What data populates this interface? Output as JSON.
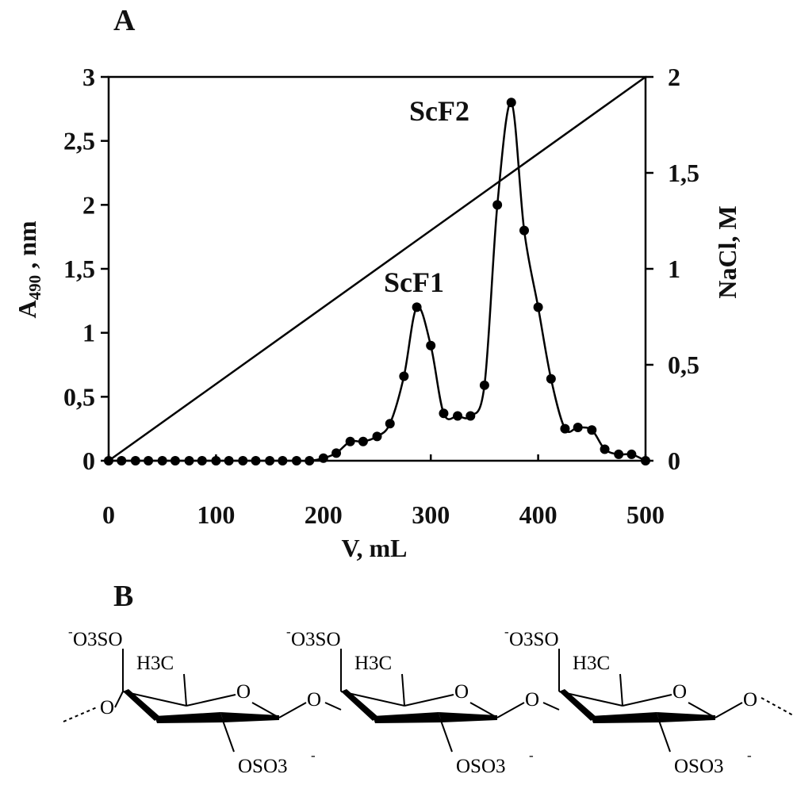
{
  "panels": {
    "a_label": "A",
    "b_label": "B"
  },
  "chart_data": {
    "type": "line",
    "x_axis": {
      "label": "V, mL",
      "range": [
        0,
        500
      ],
      "ticks": [
        0,
        100,
        200,
        300,
        400,
        500
      ],
      "tick_labels": [
        "0",
        "100",
        "200",
        "300",
        "400",
        "500"
      ]
    },
    "y_axis_left": {
      "label_main": "A",
      "label_sub": "490",
      "label_rest": " , nm",
      "range": [
        0,
        3
      ],
      "ticks": [
        0,
        0.5,
        1,
        1.5,
        2,
        2.5,
        3
      ],
      "tick_labels": [
        "0",
        "0,5",
        "1",
        "1,5",
        "2",
        "2,5",
        "3"
      ]
    },
    "y_axis_right": {
      "label": "NaCl, M",
      "range": [
        0,
        2
      ],
      "ticks": [
        0,
        0.5,
        1,
        1.5,
        2
      ],
      "tick_labels": [
        "0",
        "0,5",
        "1",
        "1,5",
        "2"
      ]
    },
    "series": [
      {
        "name": "A490",
        "axis": "left",
        "marker": "circle",
        "x": [
          0,
          12,
          25,
          37,
          50,
          62,
          75,
          87,
          100,
          112,
          125,
          137,
          150,
          162,
          175,
          187,
          200,
          212,
          225,
          237,
          250,
          262,
          275,
          287,
          300,
          312,
          325,
          337,
          350,
          362,
          375,
          387,
          400,
          412,
          425,
          437,
          450,
          462,
          475,
          487,
          500
        ],
        "values": [
          0,
          0,
          0,
          0,
          0,
          0,
          0,
          0,
          0,
          0,
          0,
          0,
          0,
          0,
          0,
          0,
          0.02,
          0.06,
          0.15,
          0.15,
          0.19,
          0.29,
          0.66,
          1.2,
          0.9,
          0.37,
          0.35,
          0.35,
          0.59,
          2.0,
          2.8,
          1.8,
          1.2,
          0.64,
          0.25,
          0.26,
          0.24,
          0.09,
          0.05,
          0.05,
          0.0
        ]
      },
      {
        "name": "NaCl gradient",
        "axis": "right",
        "marker": "none",
        "x": [
          0,
          500
        ],
        "values": [
          0,
          2
        ]
      }
    ],
    "annotations": [
      {
        "text": "ScF1",
        "x": 287,
        "y": 1.2,
        "axis": "left"
      },
      {
        "text": "ScF2",
        "x": 375,
        "y": 2.8,
        "axis": "left"
      }
    ]
  },
  "structure": {
    "units": [
      {
        "top_group": "O3SO",
        "top_charge": "-",
        "methyl": "H3C",
        "ring_o": "O",
        "sulfate_bottom": "OSO3",
        "sulfate_charge": "-"
      },
      {
        "top_group": "O3SO",
        "top_charge": "-",
        "methyl": "H3C",
        "ring_o": "O",
        "sulfate_bottom": "OSO3",
        "sulfate_charge": "-"
      },
      {
        "top_group": "O3SO",
        "top_charge": "-",
        "methyl": "H3C",
        "ring_o": "O",
        "sulfate_bottom": "OSO3",
        "sulfate_charge": "-"
      }
    ],
    "linkage_o": "O"
  }
}
